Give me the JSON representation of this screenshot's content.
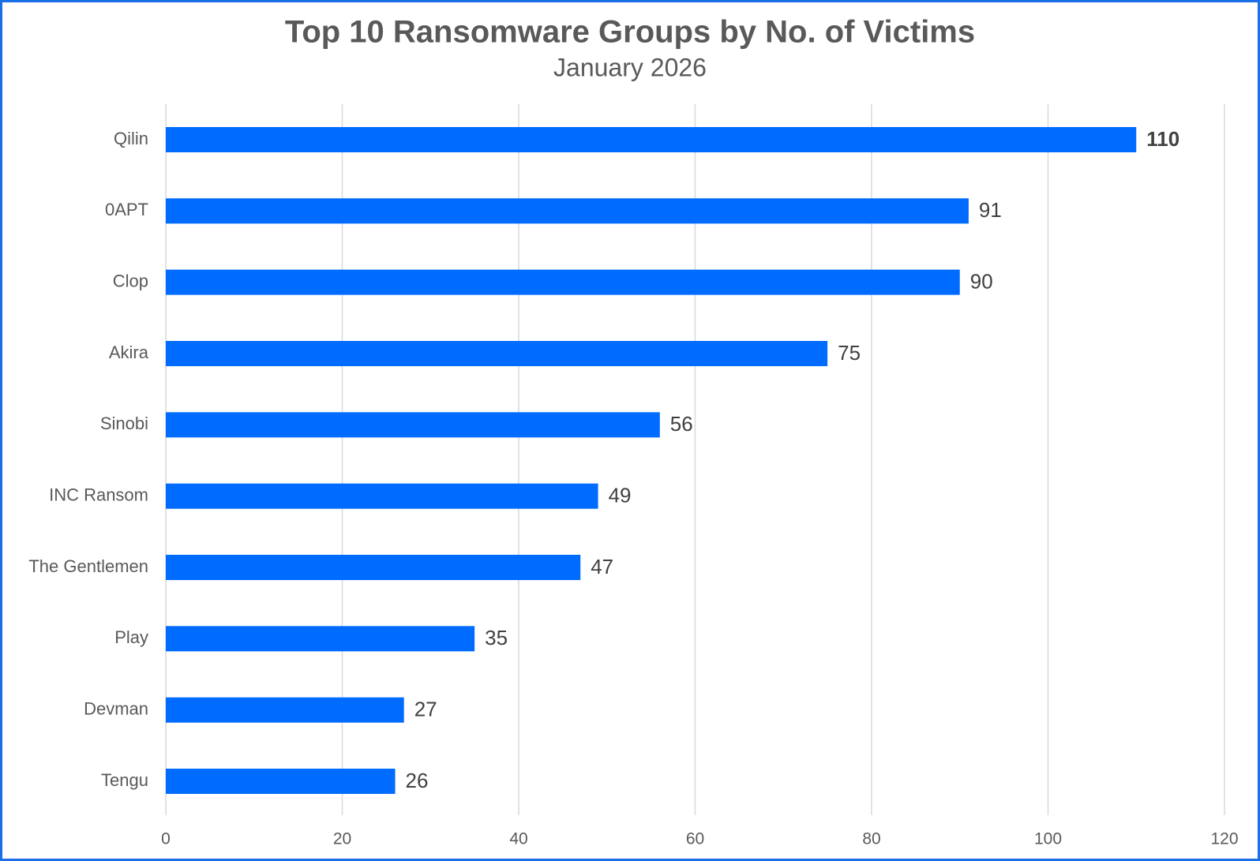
{
  "chart_data": {
    "type": "barh",
    "title": "Top 10 Ransomware Groups by No. of Victims",
    "subtitle": "January 2026",
    "categories": [
      "Qilin",
      "0APT",
      "Clop",
      "Akira",
      "Sinobi",
      "INC Ransom",
      "The Gentlemen",
      "Play",
      "Devman",
      "Tengu"
    ],
    "values": [
      110,
      91,
      90,
      75,
      56,
      49,
      47,
      35,
      27,
      26
    ],
    "color": "#006cff",
    "xlim": [
      0,
      120
    ],
    "xticks": [
      0,
      20,
      40,
      60,
      80,
      100,
      120
    ],
    "grid": true
  }
}
